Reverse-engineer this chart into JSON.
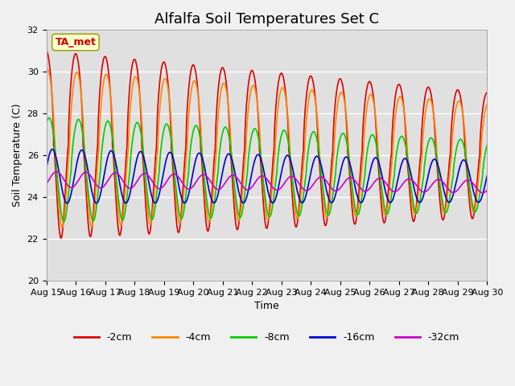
{
  "title": "Alfalfa Soil Temperatures Set C",
  "xlabel": "Time",
  "ylabel": "Soil Temperature (C)",
  "ylim": [
    20,
    32
  ],
  "xlim": [
    0,
    15
  ],
  "x_tick_labels": [
    "Aug 15",
    "Aug 16",
    "Aug 17",
    "Aug 18",
    "Aug 19",
    "Aug 20",
    "Aug 21",
    "Aug 22",
    "Aug 23",
    "Aug 24",
    "Aug 25",
    "Aug 26",
    "Aug 27",
    "Aug 28",
    "Aug 29",
    "Aug 30"
  ],
  "background_color": "#e0e0e0",
  "figure_background": "#f0f0f0",
  "grid_color": "#ffffff",
  "lines": [
    {
      "label": "-2cm",
      "color": "#dd0000",
      "lw": 1.2
    },
    {
      "label": "-4cm",
      "color": "#ff8800",
      "lw": 1.2
    },
    {
      "label": "-8cm",
      "color": "#00cc00",
      "lw": 1.2
    },
    {
      "label": "-16cm",
      "color": "#0000cc",
      "lw": 1.2
    },
    {
      "label": "-32cm",
      "color": "#cc00cc",
      "lw": 1.2
    }
  ],
  "ta_met_label": "TA_met",
  "ta_met_color": "#cc0000",
  "ta_met_bg": "#ffffcc",
  "title_fontsize": 13,
  "axis_label_fontsize": 9,
  "tick_fontsize": 8
}
